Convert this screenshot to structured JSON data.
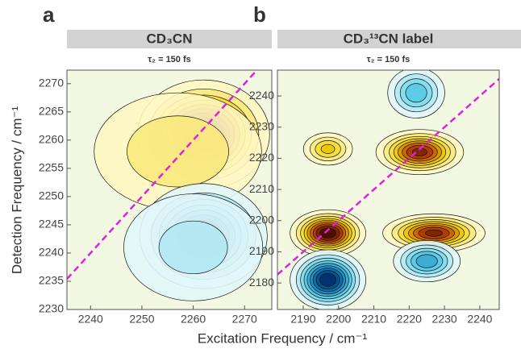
{
  "x_label": "Excitation Frequency / cm⁻¹",
  "chart_data": [
    {
      "type": "contour",
      "panel": "a",
      "header": "CD₃CN",
      "subtitle": "τ₂ = 150 fs",
      "y_label": "Detection Frequency / cm⁻¹",
      "xlim": [
        2235.4,
        2275.3
      ],
      "ylim": [
        2230,
        2272.4
      ],
      "xticks": [
        2240,
        2250,
        2260,
        2270
      ],
      "yticks": [
        2230,
        2235,
        2240,
        2245,
        2250,
        2255,
        2260,
        2265,
        2270
      ],
      "colormap": [
        "#00205e",
        "#0a78b8",
        "#5cd0e8",
        "#e4f7fa",
        "#fff8c8",
        "#f0d000",
        "#c04000",
        "#300000"
      ],
      "diagonal_color": "#e020e0",
      "peaks": [
        {
          "x": 2262,
          "y": 2261,
          "wx": 6,
          "wy": 4.5,
          "amplitude": 1
        },
        {
          "x": 2257,
          "y": 2258,
          "wx": 11,
          "wy": 7,
          "amplitude": 0.3
        },
        {
          "x": 2262,
          "y": 2243,
          "wx": 6,
          "wy": 4.5,
          "amplitude": -0.85
        },
        {
          "x": 2260,
          "y": 2241,
          "wx": 10,
          "wy": 7,
          "amplitude": -0.25
        }
      ]
    },
    {
      "type": "contour",
      "panel": "b",
      "header": "CD₃¹³CN label",
      "subtitle": "τ₂ = 150 fs",
      "xlim": [
        2182.7,
        2245.5
      ],
      "ylim": [
        2171.5,
        2248.3
      ],
      "xticks": [
        2190,
        2200,
        2210,
        2220,
        2230,
        2240
      ],
      "yticks": [
        2180,
        2190,
        2200,
        2210,
        2220,
        2230,
        2240
      ],
      "colormap": [
        "#00205e",
        "#0a78b8",
        "#5cd0e8",
        "#e4f7fa",
        "#fff8c8",
        "#f0d000",
        "#c04000",
        "#300000"
      ],
      "diagonal_color": "#e020e0",
      "peaks": [
        {
          "x": 2197,
          "y": 2223,
          "wx": 4,
          "wy": 3,
          "amplitude": 0.45
        },
        {
          "x": 2223,
          "y": 2222,
          "wx": 6,
          "wy": 3.5,
          "amplitude": 0.85
        },
        {
          "x": 2222,
          "y": 2241,
          "wx": 4.5,
          "wy": 4.5,
          "amplitude": -0.5
        },
        {
          "x": 2197,
          "y": 2196,
          "wx": 5,
          "wy": 3.5,
          "amplitude": 1
        },
        {
          "x": 2227,
          "y": 2196,
          "wx": 7,
          "wy": 3,
          "amplitude": 0.85
        },
        {
          "x": 2197,
          "y": 2181,
          "wx": 5,
          "wy": 4.5,
          "amplitude": -1
        },
        {
          "x": 2225,
          "y": 2187,
          "wx": 5,
          "wy": 3.5,
          "amplitude": -0.6
        }
      ]
    }
  ]
}
